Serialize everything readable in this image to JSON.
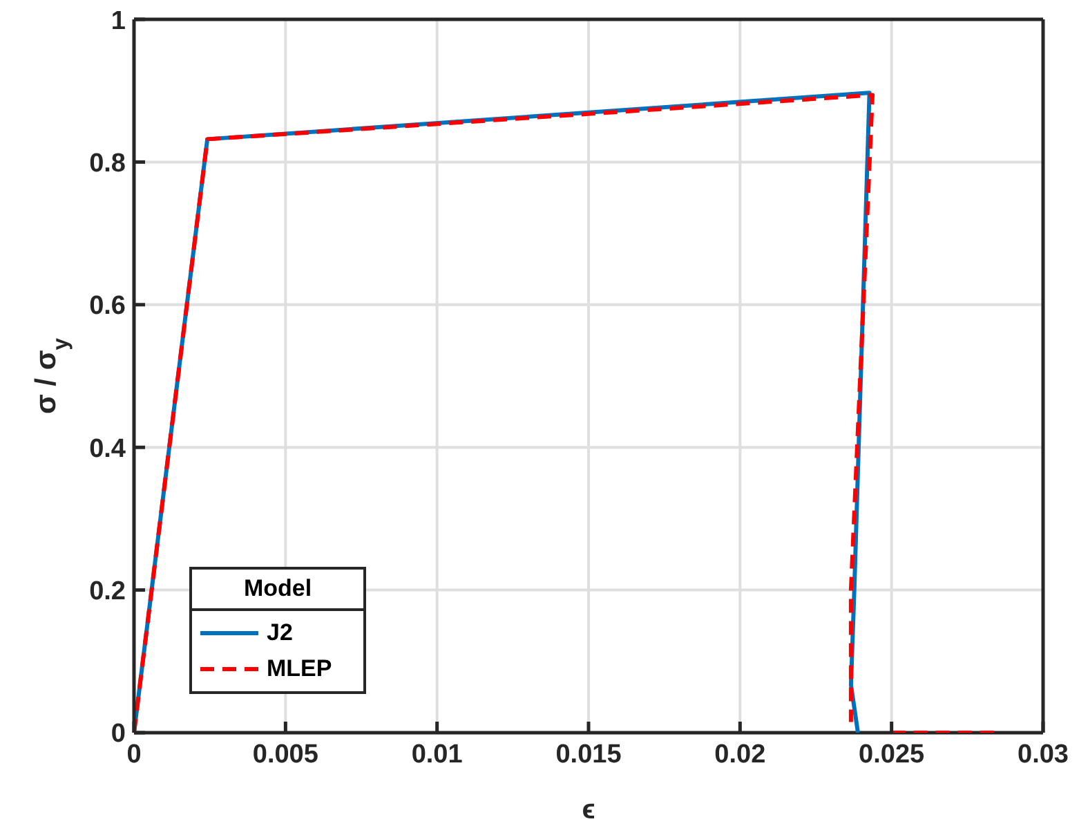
{
  "chart_data": {
    "type": "line",
    "xlabel": "ϵ",
    "ylabel": "σ / σ$_{y}$",
    "legend_title": "Model",
    "xlim": [
      0,
      0.03
    ],
    "xticks": [
      0,
      0.005,
      0.01,
      0.015,
      0.02,
      0.025,
      0.03
    ],
    "ylim": [
      0,
      1
    ],
    "yticks": [
      0,
      0.2,
      0.4,
      0.6,
      0.8,
      1
    ],
    "grid": true,
    "legend": "bottom left",
    "marker": "none",
    "series": [
      {
        "name": "J2",
        "color": "#0072bd",
        "line_style": "solid",
        "x": [
          0,
          0.00242,
          0.02427,
          0.02377,
          0.02366,
          0.02389
        ],
        "values": [
          0,
          0.832,
          0.897,
          0.2,
          0.067,
          0
        ]
      },
      {
        "name": "MLEP",
        "color": "#ff0000",
        "line_style": "dashed",
        "x": [
          0,
          0.00242,
          0.02437,
          0.02366,
          0.02366
        ],
        "values": [
          0,
          0.832,
          0.894,
          0.2,
          0.015
        ]
      },
      {
        "color": "#ff0000",
        "line_style": "dashed",
        "x": [
          0.025,
          0.0284
        ],
        "values": [
          0,
          0
        ]
      }
    ]
  }
}
